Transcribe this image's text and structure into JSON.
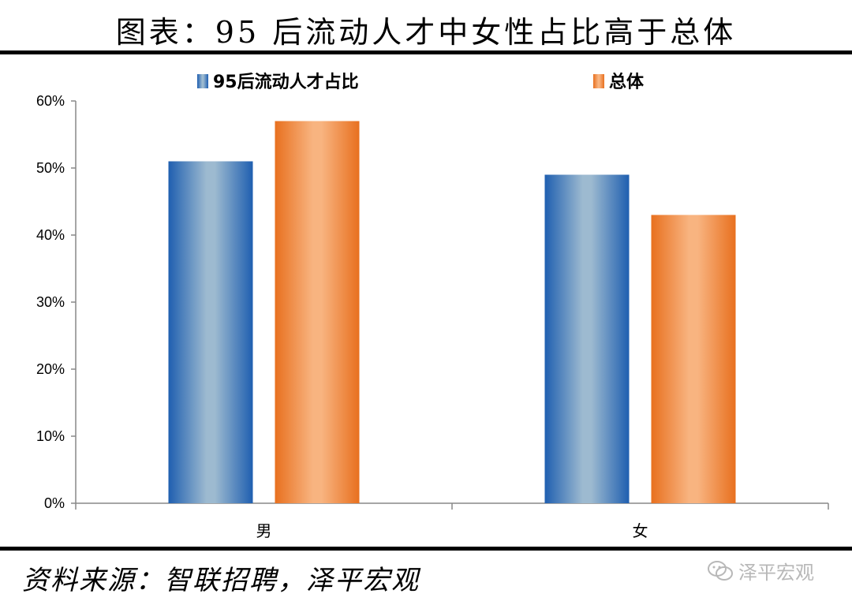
{
  "title": "图表：95 后流动人才中女性占比高于总体",
  "source": "资料来源：智联招聘，泽平宏观",
  "watermark": "泽平宏观",
  "chart_data": {
    "type": "bar",
    "categories": [
      "男",
      "女"
    ],
    "series": [
      {
        "name": "95后流动人才占比",
        "values": [
          51,
          49
        ],
        "color": "#2f6fba",
        "icon": "blue-gradient"
      },
      {
        "name": "总体",
        "values": [
          57,
          43
        ],
        "color": "#ee7d2c",
        "icon": "orange-gradient"
      }
    ],
    "y_ticks": [
      "0%",
      "10%",
      "20%",
      "30%",
      "40%",
      "50%",
      "60%"
    ],
    "ylim": [
      0,
      60
    ],
    "unit": "%",
    "legend_position": "top",
    "grid": false
  }
}
